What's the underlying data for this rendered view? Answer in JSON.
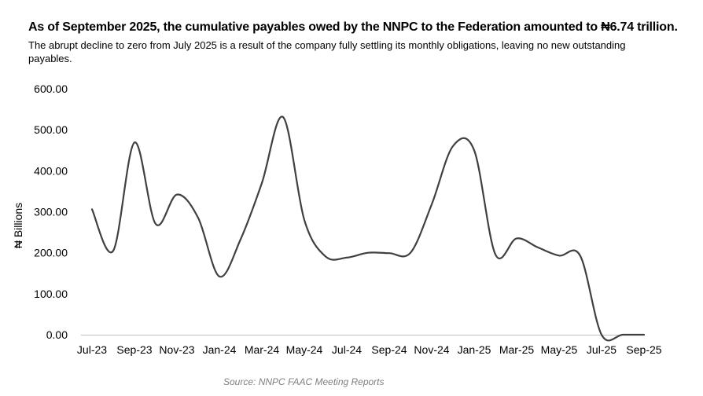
{
  "header": {
    "title": "As of September 2025, the cumulative payables owed by the NNPC to the Federation amounted to ₦6.74 trillion.",
    "subtitle": "The abrupt decline to zero from July 2025 is a result of the company fully settling its monthly obligations, leaving no new outstanding payables."
  },
  "source": "Source: NNPC FAAC Meeting Reports",
  "chart_data": {
    "type": "line",
    "title": "",
    "xlabel": "",
    "ylabel": "₦ Billions",
    "ylim": [
      0,
      600
    ],
    "yticks": [
      "0.00",
      "100.00",
      "200.00",
      "300.00",
      "400.00",
      "500.00",
      "600.00"
    ],
    "ytick_values": [
      0,
      100,
      200,
      300,
      400,
      500,
      600
    ],
    "grid": false,
    "line_color": "#404040",
    "x": [
      "Jul-23",
      "Aug-23",
      "Sep-23",
      "Oct-23",
      "Nov-23",
      "Dec-23",
      "Jan-24",
      "Feb-24",
      "Mar-24",
      "Apr-24",
      "May-24",
      "Jun-24",
      "Jul-24",
      "Aug-24",
      "Sep-24",
      "Oct-24",
      "Nov-24",
      "Dec-24",
      "Jan-25",
      "Feb-25",
      "Mar-25",
      "Apr-25",
      "May-25",
      "Jun-25",
      "Jul-25",
      "Aug-25",
      "Sep-25"
    ],
    "xtick_labels": [
      "Jul-23",
      "Sep-23",
      "Nov-23",
      "Jan-24",
      "Mar-24",
      "May-24",
      "Jul-24",
      "Sep-24",
      "Nov-24",
      "Jan-25",
      "Mar-25",
      "May-25",
      "Jul-25",
      "Sep-25"
    ],
    "series": [
      {
        "values": [
          306,
          205,
          469,
          270,
          342,
          285,
          142,
          233,
          370,
          531,
          280,
          191,
          188,
          200,
          199,
          200,
          318,
          460,
          450,
          196,
          235,
          213,
          193,
          192,
          0,
          0,
          0
        ]
      }
    ]
  }
}
